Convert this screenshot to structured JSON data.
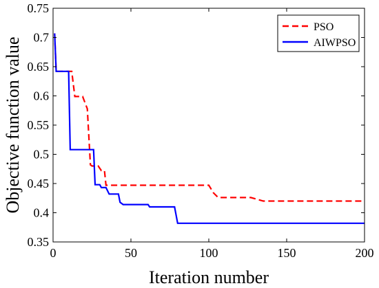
{
  "chart_data": {
    "type": "line",
    "title": "",
    "xlabel": "Iteration number",
    "ylabel": "Objective function value",
    "xlim": [
      0,
      200
    ],
    "ylim": [
      0.35,
      0.75
    ],
    "xticks": [
      0,
      50,
      100,
      150,
      200
    ],
    "yticks": [
      0.35,
      0.4,
      0.45,
      0.5,
      0.55,
      0.6,
      0.65,
      0.7,
      0.75
    ],
    "grid": false,
    "legend_position": "top-right",
    "series": [
      {
        "name": "PSO",
        "color": "#ff0000",
        "dash": "dashed",
        "x": [
          1,
          2,
          12,
          14,
          19,
          22,
          24,
          25,
          29,
          31,
          33,
          34,
          100,
          103,
          106,
          127,
          135,
          200
        ],
        "y": [
          0.707,
          0.642,
          0.642,
          0.599,
          0.599,
          0.578,
          0.482,
          0.48,
          0.48,
          0.472,
          0.472,
          0.447,
          0.447,
          0.434,
          0.426,
          0.426,
          0.42,
          0.42
        ]
      },
      {
        "name": "AIWPSO",
        "color": "#0000ff",
        "dash": "solid",
        "x": [
          1,
          2,
          10,
          11,
          26,
          27,
          30,
          31,
          34,
          36,
          42,
          43,
          45,
          61,
          62,
          78,
          80,
          200
        ],
        "y": [
          0.707,
          0.642,
          0.642,
          0.508,
          0.508,
          0.448,
          0.448,
          0.443,
          0.443,
          0.432,
          0.432,
          0.418,
          0.414,
          0.414,
          0.41,
          0.41,
          0.382,
          0.382
        ]
      }
    ]
  }
}
